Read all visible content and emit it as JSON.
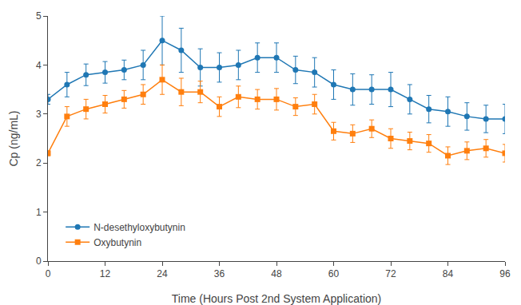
{
  "chart_data": {
    "type": "line",
    "xlabel": "Time (Hours Post 2nd System Application)",
    "ylabel": "Cp (ng/mL)",
    "x": [
      0,
      4,
      8,
      12,
      16,
      20,
      24,
      28,
      32,
      36,
      40,
      44,
      48,
      52,
      56,
      60,
      64,
      68,
      72,
      76,
      80,
      84,
      88,
      92,
      96
    ],
    "series": [
      {
        "name": "N-desethyloxybutynin",
        "marker": "circle",
        "line_style": "solid",
        "values": [
          3.3,
          3.6,
          3.8,
          3.85,
          3.9,
          4.0,
          4.5,
          4.3,
          3.95,
          3.95,
          4.0,
          4.15,
          4.15,
          3.9,
          3.85,
          3.6,
          3.5,
          3.5,
          3.5,
          3.3,
          3.1,
          3.05,
          2.95,
          2.9,
          2.9
        ],
        "errors": [
          0.1,
          0.25,
          0.22,
          0.22,
          0.2,
          0.3,
          0.5,
          0.45,
          0.38,
          0.3,
          0.3,
          0.3,
          0.3,
          0.28,
          0.3,
          0.3,
          0.32,
          0.3,
          0.35,
          0.3,
          0.28,
          0.3,
          0.28,
          0.28,
          0.3
        ]
      },
      {
        "name": "Oxybutynin",
        "marker": "square",
        "line_style": "solid",
        "values": [
          2.2,
          2.95,
          3.1,
          3.2,
          3.3,
          3.4,
          3.7,
          3.45,
          3.45,
          3.15,
          3.35,
          3.3,
          3.3,
          3.15,
          3.2,
          2.65,
          2.6,
          2.7,
          2.5,
          2.45,
          2.4,
          2.15,
          2.25,
          2.3,
          2.2
        ],
        "errors": [
          0.05,
          0.2,
          0.2,
          0.18,
          0.18,
          0.2,
          0.3,
          0.28,
          0.22,
          0.2,
          0.22,
          0.2,
          0.22,
          0.18,
          0.2,
          0.18,
          0.18,
          0.18,
          0.2,
          0.18,
          0.18,
          0.18,
          0.18,
          0.18,
          0.18
        ]
      }
    ],
    "xlim": [
      0,
      96
    ],
    "ylim": [
      0,
      5
    ],
    "xticks": [
      0,
      12,
      24,
      36,
      48,
      60,
      72,
      84,
      96
    ],
    "yticks": [
      0,
      1,
      2,
      3,
      4,
      5
    ],
    "grid": false,
    "legend": "lower left"
  }
}
